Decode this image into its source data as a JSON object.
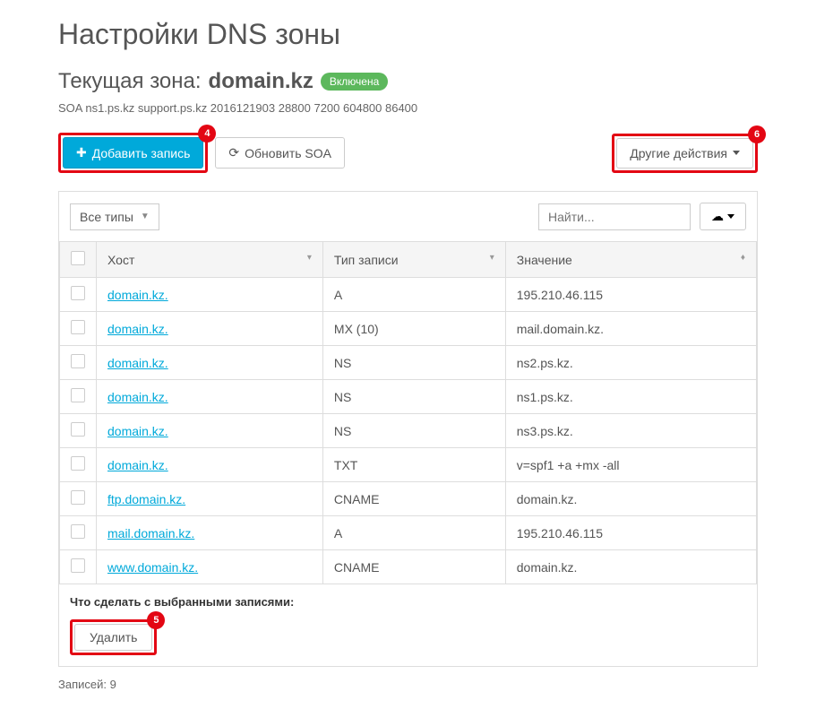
{
  "page_title": "Настройки DNS зоны",
  "current_zone_label": "Текущая зона:",
  "zone_name": "domain.kz",
  "status_badge": "Включена",
  "soa_line": "SOA ns1.ps.kz support.ps.kz 2016121903 28800 7200 604800 86400",
  "callouts": {
    "add": "4",
    "delete": "5",
    "other": "6"
  },
  "buttons": {
    "add_record": "Добавить запись",
    "refresh_soa": "Обновить SOA",
    "other_actions": "Другие действия",
    "delete": "Удалить"
  },
  "filter": {
    "all_types": "Все типы",
    "search_placeholder": "Найти..."
  },
  "table": {
    "headers": {
      "host": "Хост",
      "type": "Тип записи",
      "value": "Значение"
    },
    "rows": [
      {
        "host": "domain.kz.",
        "type": "A",
        "value": "195.210.46.115"
      },
      {
        "host": "domain.kz.",
        "type": "MX (10)",
        "value": "mail.domain.kz."
      },
      {
        "host": "domain.kz.",
        "type": "NS",
        "value": "ns2.ps.kz."
      },
      {
        "host": "domain.kz.",
        "type": "NS",
        "value": "ns1.ps.kz."
      },
      {
        "host": "domain.kz.",
        "type": "NS",
        "value": "ns3.ps.kz."
      },
      {
        "host": "domain.kz.",
        "type": "TXT",
        "value": "v=spf1 +a +mx -all"
      },
      {
        "host": "ftp.domain.kz.",
        "type": "CNAME",
        "value": "domain.kz."
      },
      {
        "host": "mail.domain.kz.",
        "type": "A",
        "value": "195.210.46.115"
      },
      {
        "host": "www.domain.kz.",
        "type": "CNAME",
        "value": "domain.kz."
      }
    ]
  },
  "bulk_label": "Что сделать с выбранными записями:",
  "record_count": "Записей: 9",
  "colors": {
    "primary": "#00a9da",
    "badge_green": "#5cb85c",
    "highlight_red": "#e30613",
    "border": "#ddd",
    "text": "#555"
  }
}
